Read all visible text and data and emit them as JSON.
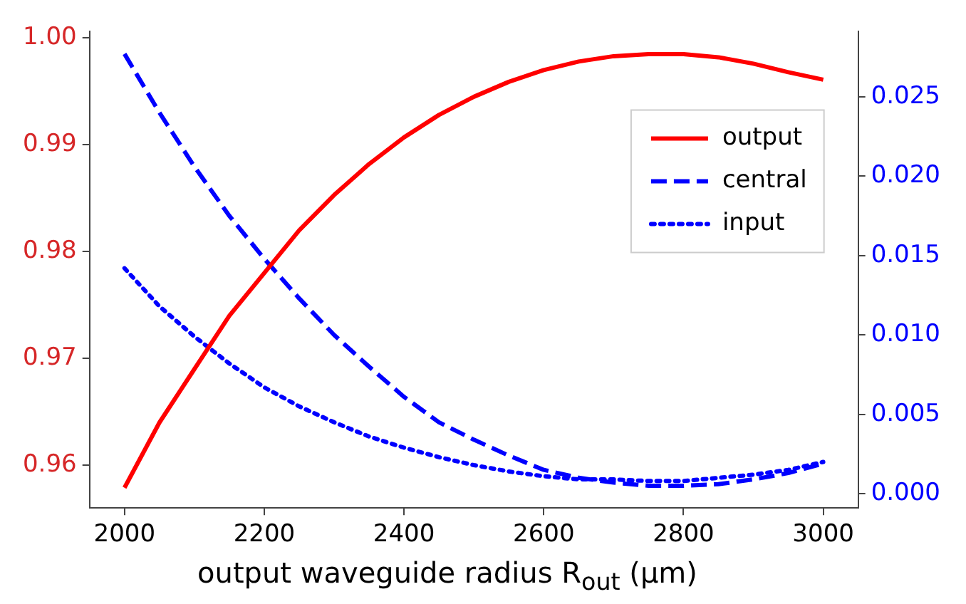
{
  "chart_data": {
    "type": "line",
    "xlabel": "output waveguide radius R$_{out}$ (μm)",
    "x": [
      2000,
      2050,
      2100,
      2150,
      2200,
      2250,
      2300,
      2350,
      2400,
      2450,
      2500,
      2550,
      2600,
      2650,
      2700,
      2750,
      2800,
      2850,
      2900,
      2950,
      3000
    ],
    "series": [
      {
        "name": "output",
        "color": "#ff0000",
        "line_style": "solid",
        "values": [
          0.9579,
          0.964,
          0.969,
          0.974,
          0.978,
          0.982,
          0.9853,
          0.9882,
          0.9907,
          0.9928,
          0.9945,
          0.9959,
          0.997,
          0.9978,
          0.9983,
          0.9985,
          0.9985,
          0.9982,
          0.9976,
          0.9968,
          0.9961
        ]
      },
      {
        "name": "central",
        "color": "#0000ff",
        "line_style": "dashed",
        "axis": "y2",
        "values": [
          0.0277,
          0.024,
          0.0206,
          0.0175,
          0.0148,
          0.0123,
          0.01,
          0.008,
          0.0061,
          0.0045,
          0.0034,
          0.0024,
          0.0015,
          0.001,
          0.0007,
          0.0005,
          0.0005,
          0.0006,
          0.0009,
          0.0013,
          0.0019
        ]
      },
      {
        "name": "input",
        "color": "#0000ff",
        "line_style": "dotted",
        "axis": "y2",
        "values": [
          0.0142,
          0.0118,
          0.0099,
          0.0082,
          0.0067,
          0.0055,
          0.0045,
          0.0036,
          0.0029,
          0.0023,
          0.0018,
          0.0014,
          0.0011,
          0.0009,
          0.0009,
          0.0008,
          0.0008,
          0.001,
          0.0012,
          0.0015,
          0.002
        ]
      }
    ],
    "xlim": [
      1950,
      3050
    ],
    "xticks": [
      2000,
      2200,
      2400,
      2600,
      2800,
      3000
    ],
    "ylim": [
      0.956,
      1.0006
    ],
    "yticks": [
      {
        "value": 0.96,
        "label": "0.96"
      },
      {
        "value": 0.97,
        "label": "0.97"
      },
      {
        "value": 0.98,
        "label": "0.98"
      },
      {
        "value": 0.99,
        "label": "0.99"
      },
      {
        "value": 1,
        "label": "1.00"
      }
    ],
    "y2lim": [
      -0.0009,
      0.0291
    ],
    "y2ticks": [
      {
        "value": 0,
        "label": "0.000"
      },
      {
        "value": 0.005,
        "label": "0.005"
      },
      {
        "value": 0.01,
        "label": "0.010"
      },
      {
        "value": 0.015,
        "label": "0.015"
      },
      {
        "value": 0.02,
        "label": "0.020"
      },
      {
        "value": 0.025,
        "label": "0.025"
      }
    ],
    "grid": false,
    "legend": "top right",
    "marker": "none"
  }
}
